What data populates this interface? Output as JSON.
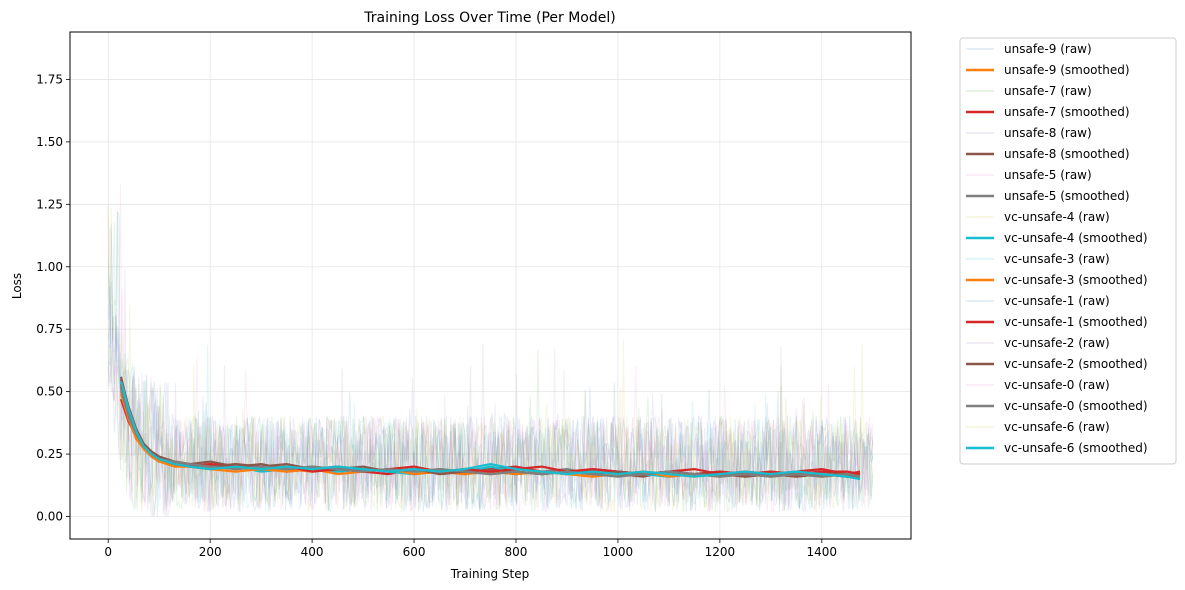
{
  "chart_data": {
    "type": "line",
    "title": "Training Loss Over Time (Per Model)",
    "xlabel": "Training Step",
    "ylabel": "Loss",
    "xlim": [
      -75,
      1575
    ],
    "ylim": [
      -0.09,
      1.94
    ],
    "xticks": [
      0,
      200,
      400,
      600,
      800,
      1000,
      1200,
      1400
    ],
    "yticks": [
      0.0,
      0.25,
      0.5,
      0.75,
      1.0,
      1.25,
      1.5,
      1.75
    ],
    "xtick_labels": [
      "0",
      "200",
      "400",
      "600",
      "800",
      "1000",
      "1200",
      "1400"
    ],
    "ytick_labels": [
      "0.00",
      "0.25",
      "0.50",
      "0.75",
      "1.00",
      "1.25",
      "1.50",
      "1.75"
    ],
    "grid": true,
    "legend_position": "outside-right",
    "raw_x_range": [
      0,
      1500
    ],
    "raw_noise_band": [
      0.02,
      0.45
    ],
    "smoothed_x": [
      25,
      40,
      55,
      70,
      85,
      100,
      130,
      160,
      200,
      250,
      300,
      350,
      400,
      450,
      500,
      550,
      600,
      650,
      700,
      750,
      800,
      850,
      900,
      950,
      1000,
      1050,
      1100,
      1150,
      1200,
      1250,
      1300,
      1350,
      1400,
      1450,
      1475
    ],
    "series": [
      {
        "name": "unsafe-9 (raw)",
        "kind": "raw",
        "color": "#1f77b4"
      },
      {
        "name": "unsafe-9 (smoothed)",
        "kind": "smoothed",
        "color": "#ff7f0e",
        "values": [
          0.5,
          0.4,
          0.33,
          0.28,
          0.25,
          0.23,
          0.22,
          0.21,
          0.2,
          0.21,
          0.2,
          0.19,
          0.18,
          0.19,
          0.18,
          0.19,
          0.18,
          0.19,
          0.18,
          0.18,
          0.17,
          0.18,
          0.17,
          0.18,
          0.17,
          0.18,
          0.17,
          0.16,
          0.17,
          0.16,
          0.17,
          0.16,
          0.17,
          0.16,
          0.16
        ]
      },
      {
        "name": "unsafe-7 (raw)",
        "kind": "raw",
        "color": "#2ca02c"
      },
      {
        "name": "unsafe-7 (smoothed)",
        "kind": "smoothed",
        "color": "#d62728",
        "values": [
          0.47,
          0.38,
          0.32,
          0.27,
          0.24,
          0.22,
          0.21,
          0.2,
          0.21,
          0.19,
          0.2,
          0.18,
          0.19,
          0.2,
          0.18,
          0.17,
          0.19,
          0.18,
          0.17,
          0.19,
          0.2,
          0.18,
          0.17,
          0.19,
          0.18,
          0.17,
          0.18,
          0.19,
          0.17,
          0.18,
          0.17,
          0.18,
          0.19,
          0.17,
          0.18
        ]
      },
      {
        "name": "unsafe-8 (raw)",
        "kind": "raw",
        "color": "#9467bd"
      },
      {
        "name": "unsafe-8 (smoothed)",
        "kind": "smoothed",
        "color": "#8c564b",
        "values": [
          0.56,
          0.43,
          0.34,
          0.29,
          0.26,
          0.24,
          0.22,
          0.21,
          0.22,
          0.2,
          0.21,
          0.19,
          0.2,
          0.19,
          0.2,
          0.18,
          0.19,
          0.17,
          0.18,
          0.19,
          0.18,
          0.17,
          0.18,
          0.18,
          0.17,
          0.16,
          0.18,
          0.17,
          0.18,
          0.17,
          0.16,
          0.17,
          0.18,
          0.17,
          0.17
        ]
      },
      {
        "name": "unsafe-5 (raw)",
        "kind": "raw",
        "color": "#e377c2"
      },
      {
        "name": "unsafe-5 (smoothed)",
        "kind": "smoothed",
        "color": "#7f7f7f",
        "values": [
          0.52,
          0.41,
          0.33,
          0.27,
          0.24,
          0.22,
          0.21,
          0.2,
          0.19,
          0.2,
          0.19,
          0.2,
          0.19,
          0.18,
          0.19,
          0.18,
          0.17,
          0.18,
          0.19,
          0.18,
          0.17,
          0.18,
          0.19,
          0.17,
          0.18,
          0.17,
          0.18,
          0.17,
          0.16,
          0.17,
          0.18,
          0.17,
          0.16,
          0.17,
          0.16
        ]
      },
      {
        "name": "vc-unsafe-4 (raw)",
        "kind": "raw",
        "color": "#bcbd22"
      },
      {
        "name": "vc-unsafe-4 (smoothed)",
        "kind": "smoothed",
        "color": "#17becf",
        "values": [
          0.54,
          0.42,
          0.32,
          0.27,
          0.24,
          0.22,
          0.21,
          0.2,
          0.19,
          0.2,
          0.18,
          0.19,
          0.2,
          0.18,
          0.19,
          0.18,
          0.17,
          0.19,
          0.18,
          0.2,
          0.18,
          0.17,
          0.18,
          0.17,
          0.18,
          0.17,
          0.16,
          0.17,
          0.18,
          0.16,
          0.17,
          0.18,
          0.17,
          0.16,
          0.15
        ]
      },
      {
        "name": "vc-unsafe-3 (raw)",
        "kind": "raw",
        "color": "#17becf"
      },
      {
        "name": "vc-unsafe-3 (smoothed)",
        "kind": "smoothed",
        "color": "#ff7f0e",
        "values": [
          0.49,
          0.39,
          0.31,
          0.27,
          0.24,
          0.22,
          0.2,
          0.2,
          0.19,
          0.18,
          0.19,
          0.18,
          0.19,
          0.17,
          0.18,
          0.19,
          0.17,
          0.18,
          0.17,
          0.18,
          0.17,
          0.18,
          0.17,
          0.16,
          0.17,
          0.18,
          0.16,
          0.17,
          0.16,
          0.17,
          0.16,
          0.17,
          0.16,
          0.17,
          0.16
        ]
      },
      {
        "name": "vc-unsafe-1 (raw)",
        "kind": "raw",
        "color": "#1f77b4"
      },
      {
        "name": "vc-unsafe-1 (smoothed)",
        "kind": "smoothed",
        "color": "#d62728",
        "values": [
          0.53,
          0.42,
          0.33,
          0.28,
          0.25,
          0.23,
          0.21,
          0.2,
          0.21,
          0.2,
          0.19,
          0.2,
          0.18,
          0.19,
          0.18,
          0.19,
          0.2,
          0.18,
          0.19,
          0.18,
          0.19,
          0.2,
          0.18,
          0.19,
          0.18,
          0.17,
          0.18,
          0.17,
          0.18,
          0.17,
          0.18,
          0.17,
          0.18,
          0.18,
          0.17
        ]
      },
      {
        "name": "vc-unsafe-2 (raw)",
        "kind": "raw",
        "color": "#9467bd"
      },
      {
        "name": "vc-unsafe-2 (smoothed)",
        "kind": "smoothed",
        "color": "#8c564b",
        "values": [
          0.55,
          0.44,
          0.35,
          0.29,
          0.25,
          0.23,
          0.22,
          0.21,
          0.2,
          0.21,
          0.2,
          0.21,
          0.19,
          0.2,
          0.19,
          0.18,
          0.19,
          0.17,
          0.18,
          0.17,
          0.18,
          0.17,
          0.18,
          0.17,
          0.18,
          0.17,
          0.18,
          0.17,
          0.17,
          0.16,
          0.17,
          0.16,
          0.17,
          0.16,
          0.16
        ]
      },
      {
        "name": "vc-unsafe-0 (raw)",
        "kind": "raw",
        "color": "#e377c2"
      },
      {
        "name": "vc-unsafe-0 (smoothed)",
        "kind": "smoothed",
        "color": "#7f7f7f",
        "values": [
          0.51,
          0.4,
          0.33,
          0.28,
          0.25,
          0.23,
          0.22,
          0.21,
          0.2,
          0.19,
          0.2,
          0.19,
          0.2,
          0.19,
          0.18,
          0.19,
          0.18,
          0.19,
          0.18,
          0.17,
          0.18,
          0.17,
          0.18,
          0.17,
          0.16,
          0.17,
          0.18,
          0.17,
          0.16,
          0.17,
          0.16,
          0.17,
          0.16,
          0.17,
          0.16
        ]
      },
      {
        "name": "vc-unsafe-6 (raw)",
        "kind": "raw",
        "color": "#bcbd22"
      },
      {
        "name": "vc-unsafe-6 (smoothed)",
        "kind": "smoothed",
        "color": "#17becf",
        "values": [
          0.54,
          0.43,
          0.34,
          0.28,
          0.25,
          0.23,
          0.21,
          0.2,
          0.19,
          0.2,
          0.19,
          0.2,
          0.19,
          0.2,
          0.19,
          0.18,
          0.19,
          0.18,
          0.19,
          0.21,
          0.19,
          0.18,
          0.17,
          0.18,
          0.17,
          0.18,
          0.17,
          0.16,
          0.17,
          0.18,
          0.17,
          0.18,
          0.17,
          0.16,
          0.15
        ]
      }
    ]
  }
}
